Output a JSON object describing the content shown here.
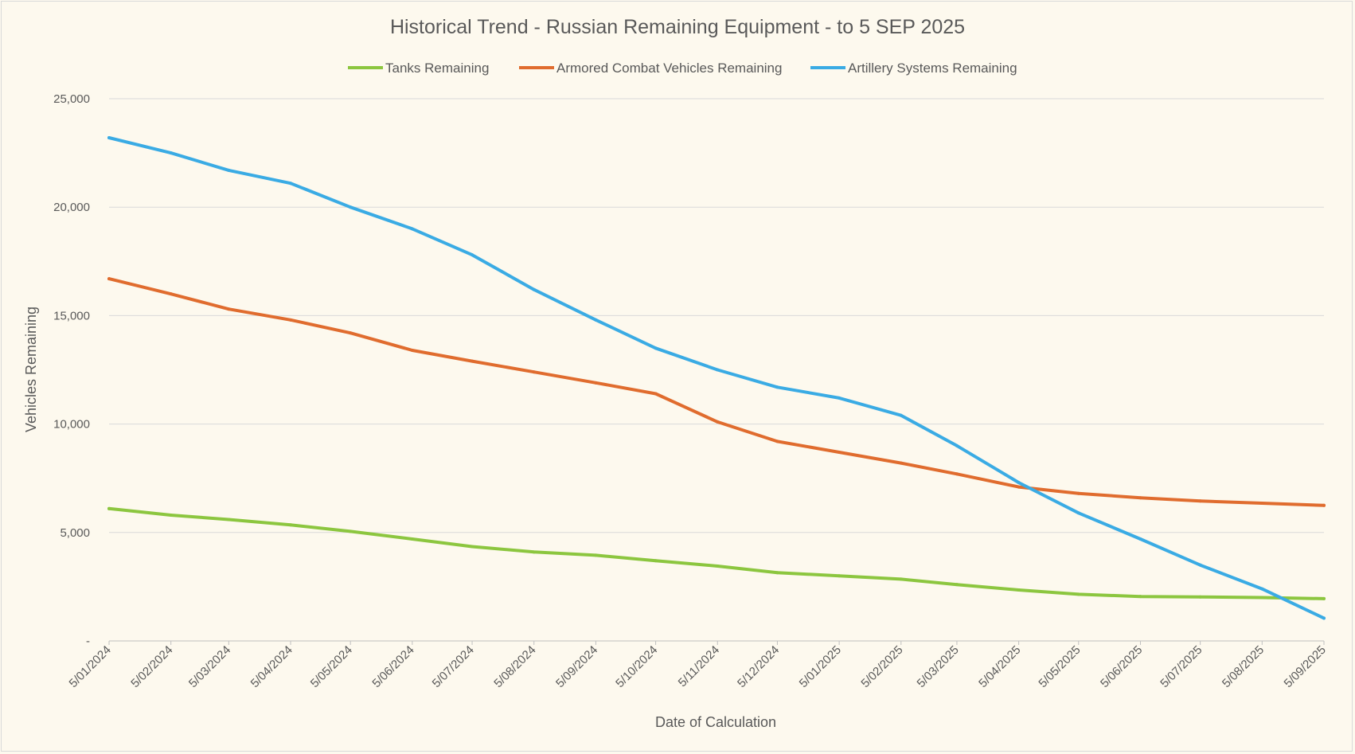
{
  "chart_data": {
    "type": "line",
    "title": "Historical Trend - Russian Remaining Equipment - to 5 SEP 2025",
    "xlabel": "Date of Calculation",
    "ylabel": "Vehicles Remaining",
    "ylim": [
      0,
      25000
    ],
    "yticks": [
      0,
      5000,
      10000,
      15000,
      20000,
      25000
    ],
    "ytick_labels": [
      "-",
      "5,000",
      "10,000",
      "15,000",
      "20,000",
      "25,000"
    ],
    "xlim": [
      "2024-01-05",
      "2025-09-05"
    ],
    "xtick_labels": [
      "5/01/2024",
      "5/02/2024",
      "5/03/2024",
      "5/04/2024",
      "5/05/2024",
      "5/06/2024",
      "5/07/2024",
      "5/08/2024",
      "5/09/2024",
      "5/10/2024",
      "5/11/2024",
      "5/12/2024",
      "5/01/2025",
      "5/02/2025",
      "5/03/2025",
      "5/04/2025",
      "5/05/2025",
      "5/06/2025",
      "5/07/2025",
      "5/08/2025",
      "5/09/2025"
    ],
    "xtick_dates": [
      "2024-01-05",
      "2024-02-05",
      "2024-03-05",
      "2024-04-05",
      "2024-05-05",
      "2024-06-05",
      "2024-07-05",
      "2024-08-05",
      "2024-09-05",
      "2024-10-05",
      "2024-11-05",
      "2024-12-05",
      "2025-01-05",
      "2025-02-05",
      "2025-03-05",
      "2025-04-05",
      "2025-05-05",
      "2025-06-05",
      "2025-07-05",
      "2025-08-05",
      "2025-09-05"
    ],
    "grid": true,
    "legend_position": "top",
    "series": [
      {
        "name": "Tanks Remaining",
        "color": "#8cc63f",
        "values": [
          6100,
          5800,
          5600,
          5350,
          5050,
          4700,
          4350,
          4100,
          3950,
          3700,
          3450,
          3150,
          3000,
          2850,
          2600,
          2350,
          2150,
          2050,
          2030,
          2000,
          1950
        ]
      },
      {
        "name": "Armored Combat Vehicles Remaining",
        "color": "#e06c2e",
        "values": [
          16700,
          16000,
          15300,
          14800,
          14200,
          13400,
          12900,
          12400,
          11900,
          11400,
          10100,
          9200,
          8700,
          8200,
          7700,
          7100,
          6800,
          6600,
          6450,
          6350,
          6250
        ]
      },
      {
        "name": "Artillery Systems Remaining",
        "color": "#3aabe4",
        "values": [
          23200,
          22500,
          21700,
          21100,
          20000,
          19000,
          17800,
          16200,
          14800,
          13500,
          12500,
          11700,
          11200,
          10400,
          9000,
          7300,
          5900,
          4700,
          3500,
          2400,
          1050
        ]
      }
    ]
  }
}
